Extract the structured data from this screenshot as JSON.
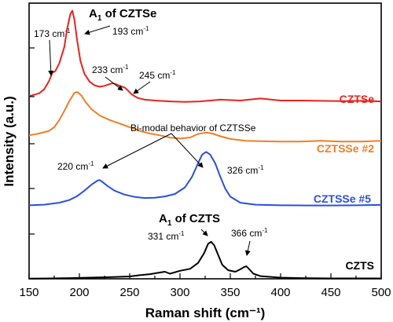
{
  "chart_data": {
    "type": "line",
    "xlabel": "Raman shift (cm⁻¹)",
    "ylabel": "Intensity (a.u.)",
    "xlim": [
      150,
      500
    ],
    "xticks": [
      "150",
      "200",
      "250",
      "300",
      "350",
      "400",
      "450",
      "500"
    ],
    "grid": false,
    "series": [
      {
        "name": "CZTSe",
        "color": "#e8231f",
        "x": [
          150,
          160,
          165,
          170,
          173,
          176,
          180,
          185,
          188,
          191,
          193,
          195,
          198,
          201,
          205,
          210,
          215,
          220,
          225,
          230,
          233,
          236,
          240,
          245,
          248,
          252,
          258,
          265,
          275,
          290,
          305,
          320,
          340,
          360,
          380,
          400,
          420,
          440,
          460,
          480,
          500
        ],
        "y": [
          0.75,
          0.92,
          1.15,
          1.65,
          2.1,
          2.2,
          2.65,
          3.6,
          4.7,
          5.5,
          5.7,
          5.2,
          3.9,
          2.8,
          2.05,
          1.6,
          1.38,
          1.3,
          1.35,
          1.45,
          1.5,
          1.45,
          1.35,
          1.25,
          1.1,
          0.85,
          0.65,
          0.55,
          0.5,
          0.45,
          0.42,
          0.45,
          0.55,
          0.5,
          0.62,
          0.5,
          0.5,
          0.48,
          0.47,
          0.48,
          0.45
        ]
      },
      {
        "name": "CZTSSe #2",
        "color": "#f07e26",
        "x": [
          150,
          160,
          170,
          175,
          180,
          185,
          190,
          195,
          198,
          202,
          206,
          212,
          220,
          230,
          240,
          250,
          260,
          270,
          280,
          290,
          300,
          310,
          318,
          326,
          332,
          340,
          350,
          365,
          380,
          400,
          420,
          440,
          460,
          480,
          500
        ],
        "y": [
          1.9,
          2.0,
          2.15,
          2.35,
          2.75,
          3.25,
          3.8,
          4.25,
          4.3,
          4.1,
          3.75,
          3.35,
          3.0,
          2.75,
          2.55,
          2.35,
          2.15,
          2.0,
          1.9,
          1.78,
          1.72,
          1.78,
          1.98,
          2.05,
          2.0,
          1.85,
          1.7,
          1.6,
          1.58,
          1.55,
          1.55,
          1.6,
          1.55,
          1.55,
          1.6
        ]
      },
      {
        "name": "CZTSSe #5",
        "color": "#2a4fe0",
        "x": [
          150,
          165,
          180,
          190,
          198,
          205,
          212,
          218,
          220,
          222,
          228,
          235,
          245,
          255,
          265,
          275,
          285,
          295,
          305,
          312,
          318,
          322,
          326,
          330,
          335,
          340,
          345,
          350,
          360,
          375,
          400,
          425,
          450,
          475,
          500
        ],
        "y": [
          0.15,
          0.2,
          0.35,
          0.55,
          0.85,
          1.25,
          1.7,
          2.0,
          2.05,
          1.95,
          1.6,
          1.25,
          0.95,
          0.78,
          0.7,
          0.72,
          0.82,
          1.0,
          1.5,
          2.3,
          3.3,
          3.95,
          4.15,
          3.95,
          3.3,
          2.3,
          1.4,
          0.8,
          0.35,
          0.2,
          0.15,
          0.14,
          0.14,
          0.15,
          0.18
        ]
      },
      {
        "name": "CZTS",
        "color": "#000000",
        "x": [
          150,
          170,
          190,
          210,
          230,
          250,
          260,
          270,
          280,
          285,
          290,
          300,
          310,
          318,
          324,
          328,
          331,
          334,
          338,
          342,
          348,
          355,
          360,
          364,
          366,
          369,
          373,
          380,
          400,
          420,
          450,
          480,
          500
        ],
        "y": [
          0.1,
          0.12,
          0.15,
          0.2,
          0.25,
          0.32,
          0.45,
          0.55,
          0.72,
          0.8,
          0.6,
          0.9,
          1.1,
          1.7,
          2.7,
          3.65,
          3.85,
          3.5,
          2.5,
          1.5,
          0.95,
          0.8,
          1.05,
          1.3,
          1.35,
          1.05,
          0.6,
          0.35,
          0.2,
          0.15,
          0.12,
          0.12,
          0.12
        ]
      }
    ],
    "series_labels": {
      "czt_se": "CZTSe",
      "cztsse2": "CZTSSe #2",
      "cztsse5": "CZTSSe #5",
      "czts": "CZTS"
    },
    "annotations": {
      "a1_czt_se_prefix": "A",
      "a1_czt_se_sub": "1",
      "a1_czt_se_suffix": " of CZTSe",
      "peak_173": "173 cm",
      "peak_193": "193 cm",
      "peak_233": "233 cm",
      "peak_245": "245 cm",
      "bimodal": "Bi-modal behavior of CZTSSe",
      "peak_220": "220 cm",
      "peak_326": "326 cm",
      "a1_czts_prefix": "A",
      "a1_czts_sub": "1",
      "a1_czts_suffix": " of CZTS",
      "peak_331": "331 cm",
      "peak_366": "366 cm",
      "unit_superscript": "-1"
    }
  }
}
